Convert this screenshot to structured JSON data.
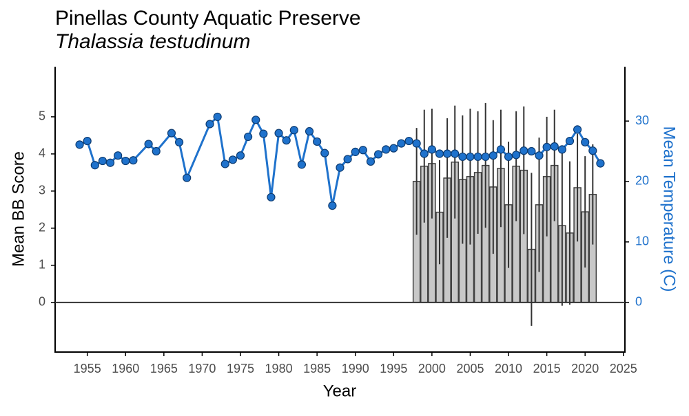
{
  "chart_data": {
    "type": "bar-line",
    "title": "Pinellas County Aquatic Preserve",
    "subtitle": "Thalassia testudinum",
    "x_label": "Year",
    "y_label": "Mean BB Score",
    "y2_label": "Mean Temperature (C)",
    "xlim": [
      1950.8,
      2025.2
    ],
    "xticks": [
      1955,
      1960,
      1965,
      1970,
      1975,
      1980,
      1985,
      1990,
      1995,
      2000,
      2005,
      2010,
      2015,
      2020,
      2025
    ],
    "ylim": [
      -1.3,
      6.35
    ],
    "yticks": [
      0,
      1,
      2,
      3,
      4,
      5
    ],
    "y2lim": [
      -8.0,
      39.0
    ],
    "y2ticks": [
      0,
      10,
      20,
      30
    ],
    "hline": 0,
    "series": [
      {
        "kind": "bar",
        "color": "#c8c8c8",
        "x": [
          1998,
          1999,
          2000,
          2001,
          2002,
          2003,
          2004,
          2005,
          2006,
          2007,
          2008,
          2009,
          2010,
          2011,
          2012,
          2013,
          2014,
          2015,
          2016,
          2017,
          2018,
          2019,
          2020,
          2021
        ],
        "values": [
          3.26,
          3.67,
          3.74,
          2.43,
          3.35,
          3.78,
          3.31,
          3.39,
          3.5,
          3.69,
          3.11,
          3.61,
          2.63,
          3.67,
          3.56,
          1.43,
          2.63,
          3.39,
          3.69,
          2.07,
          1.87,
          3.09,
          2.44,
          2.91
        ],
        "errors": [
          1.44,
          1.52,
          1.48,
          1.4,
          1.61,
          1.52,
          1.73,
          1.83,
          1.65,
          1.68,
          1.8,
          1.58,
          1.7,
          1.48,
          1.72,
          2.06,
          1.81,
          1.61,
          1.5,
          2.16,
          1.93,
          1.45,
          1.5,
          1.35
        ]
      },
      {
        "kind": "line",
        "axis": "y2",
        "color": "#1f72cc",
        "x": [
          1954,
          1955,
          1956,
          1957,
          1958,
          1959,
          1960,
          1961,
          1963,
          1964,
          1966,
          1967,
          1968,
          1971,
          1972,
          1973,
          1974,
          1975,
          1976,
          1977,
          1978,
          1979,
          1980,
          1981,
          1982,
          1983,
          1984,
          1985,
          1986,
          1987,
          1988,
          1989,
          1990,
          1991,
          1992,
          1993,
          1994,
          1995,
          1996,
          1997,
          1998,
          1999,
          2000,
          2001,
          2002,
          2003,
          2004,
          2005,
          2006,
          2007,
          2008,
          2009,
          2010,
          2011,
          2012,
          2013,
          2014,
          2015,
          2016,
          2017,
          2018,
          2019,
          2020,
          2021,
          2022
        ],
        "values": [
          26.1,
          26.7,
          22.7,
          23.4,
          23.1,
          24.3,
          23.4,
          23.5,
          26.2,
          25.0,
          28.0,
          26.5,
          20.6,
          29.5,
          30.7,
          22.9,
          23.6,
          24.3,
          27.4,
          30.2,
          27.9,
          17.4,
          28.0,
          26.8,
          28.5,
          22.8,
          28.3,
          26.6,
          24.7,
          16.0,
          22.3,
          23.7,
          24.9,
          25.2,
          23.3,
          24.5,
          25.3,
          25.5,
          26.3,
          26.7,
          26.3,
          24.6,
          25.3,
          24.6,
          24.6,
          24.6,
          24.1,
          24.1,
          24.1,
          24.1,
          24.3,
          25.3,
          24.1,
          24.4,
          25.1,
          25.0,
          24.3,
          25.7,
          25.8,
          25.3,
          26.7,
          28.6,
          26.5,
          25.1,
          23.0
        ]
      }
    ]
  }
}
